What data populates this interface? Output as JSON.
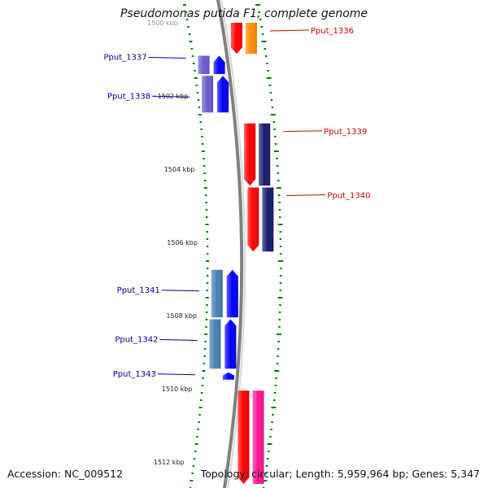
{
  "title": "Pseudomonas putida F1, complete genome",
  "footer": {
    "accession_label": "Accession:",
    "accession": "NC_009512",
    "topology_label": "Topology:",
    "topology": "circular",
    "length_label": "Length:",
    "length": "5,959,964 bp",
    "genes_label": "Genes:",
    "genes": "5,347"
  },
  "colors": {
    "forward_cds": "#ff0000",
    "forward_cog_orange": "#ff8c00",
    "forward_cog_pink": "#ff1493",
    "reverse_cds": "#0000ff",
    "reverse_cog_navy": "#191970",
    "reverse_cog_purple": "#6a5acd",
    "reverse_cog_steel": "#4682b4",
    "backbone": "#808080",
    "tick": "#008000",
    "forward_label": "#cc0000",
    "reverse_label": "#000099"
  },
  "scale": {
    "unit": "kbp",
    "major_tick_labels": [
      "1500 kbp",
      "1502 kbp",
      "1504 kbp",
      "1506 kbp",
      "1508 kbp",
      "1510 kbp",
      "1512 kbp"
    ]
  },
  "genes": [
    {
      "name": "Pput_1336",
      "strand": "forward",
      "kbp_start": 1500.0,
      "kbp_end": 1500.85,
      "cog_color": "#ff8c00"
    },
    {
      "name": "Pput_1337",
      "strand": "reverse",
      "kbp_start": 1500.9,
      "kbp_end": 1501.4,
      "cog_color": "#6a5acd"
    },
    {
      "name": "Pput_1338",
      "strand": "reverse",
      "kbp_start": 1501.45,
      "kbp_end": 1502.45,
      "cog_color": "#6a5acd"
    },
    {
      "name": "Pput_1339",
      "strand": "forward",
      "kbp_start": 1502.75,
      "kbp_end": 1504.45,
      "cog_color": "#191970"
    },
    {
      "name": "Pput_1340",
      "strand": "forward",
      "kbp_start": 1504.5,
      "kbp_end": 1506.25,
      "cog_color": "#191970"
    },
    {
      "name": "Pput_1341",
      "strand": "reverse",
      "kbp_start": 1506.75,
      "kbp_end": 1508.05,
      "cog_color": "#4682b4"
    },
    {
      "name": "Pput_1342",
      "strand": "reverse",
      "kbp_start": 1508.1,
      "kbp_end": 1509.45,
      "cog_color": "#4682b4"
    },
    {
      "name": "Pput_1343",
      "strand": "reverse",
      "kbp_start": 1509.55,
      "kbp_end": 1509.75,
      "cog_color": null
    },
    {
      "name": "",
      "strand": "forward",
      "kbp_start": 1510.05,
      "kbp_end": 1512.6,
      "cog_color": "#ff1493"
    }
  ]
}
